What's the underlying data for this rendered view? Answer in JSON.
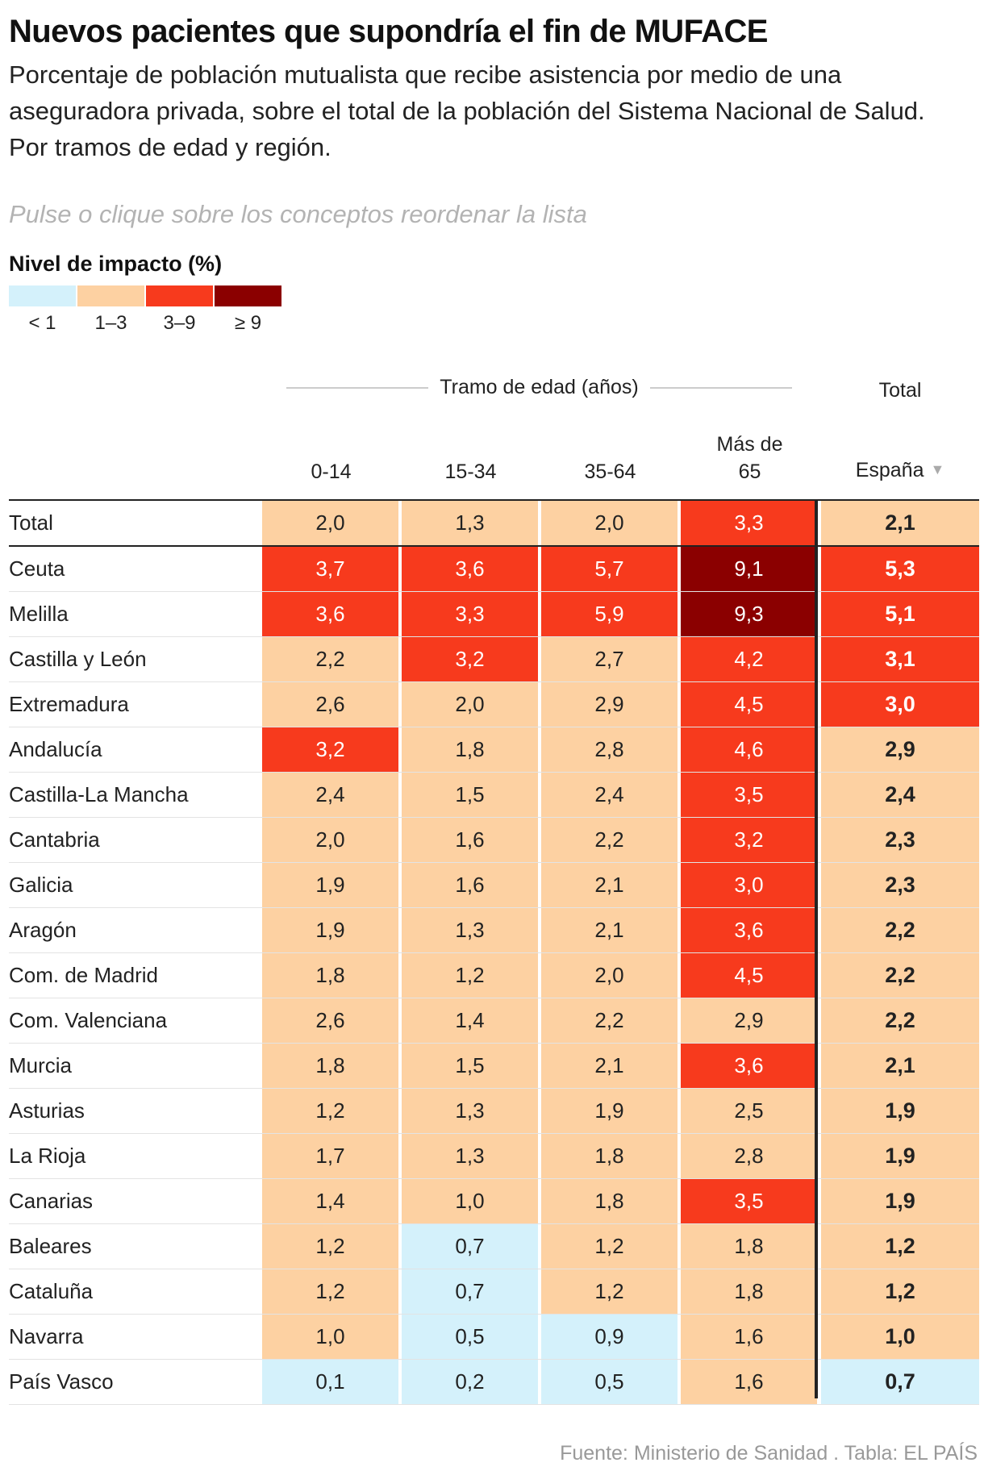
{
  "header": {
    "title": "Nuevos pacientes que supondría el fin de MUFACE",
    "subtitle": "Porcentaje de población mutualista que recibe asistencia por medio de una aseguradora privada, sobre el total de la población del Sistema Nacional de Salud. Por tramos de edad y región.",
    "hint": "Pulse o clique sobre los conceptos reordenar la lista"
  },
  "legend": {
    "title": "Nivel de impacto (%)",
    "items": [
      {
        "label": "< 1",
        "color": "#d4f1fb"
      },
      {
        "label": "1–3",
        "color": "#fdd1a2"
      },
      {
        "label": "3–9",
        "color": "#f73a1d"
      },
      {
        "label": "≥ 9",
        "color": "#8b0000"
      }
    ]
  },
  "table_header": {
    "group_label": "Tramo de edad (años)",
    "total_label": "Total",
    "columns": [
      "0-14",
      "15-34",
      "35-64",
      "Más de 65"
    ],
    "total_column": "España"
  },
  "chart_data": {
    "type": "table",
    "columns": [
      "0-14",
      "15-34",
      "35-64",
      "Más de 65",
      "España"
    ],
    "rows": [
      {
        "region": "Total",
        "values": [
          "2,0",
          "1,3",
          "2,0",
          "3,3"
        ],
        "total": "2,1"
      },
      {
        "region": "Ceuta",
        "values": [
          "3,7",
          "3,6",
          "5,7",
          "9,1"
        ],
        "total": "5,3"
      },
      {
        "region": "Melilla",
        "values": [
          "3,6",
          "3,3",
          "5,9",
          "9,3"
        ],
        "total": "5,1"
      },
      {
        "region": "Castilla y León",
        "values": [
          "2,2",
          "3,2",
          "2,7",
          "4,2"
        ],
        "total": "3,1"
      },
      {
        "region": "Extremadura",
        "values": [
          "2,6",
          "2,0",
          "2,9",
          "4,5"
        ],
        "total": "3,0"
      },
      {
        "region": "Andalucía",
        "values": [
          "3,2",
          "1,8",
          "2,8",
          "4,6"
        ],
        "total": "2,9"
      },
      {
        "region": "Castilla-La Mancha",
        "values": [
          "2,4",
          "1,5",
          "2,4",
          "3,5"
        ],
        "total": "2,4"
      },
      {
        "region": "Cantabria",
        "values": [
          "2,0",
          "1,6",
          "2,2",
          "3,2"
        ],
        "total": "2,3"
      },
      {
        "region": "Galicia",
        "values": [
          "1,9",
          "1,6",
          "2,1",
          "3,0"
        ],
        "total": "2,3"
      },
      {
        "region": "Aragón",
        "values": [
          "1,9",
          "1,3",
          "2,1",
          "3,6"
        ],
        "total": "2,2"
      },
      {
        "region": "Com. de Madrid",
        "values": [
          "1,8",
          "1,2",
          "2,0",
          "4,5"
        ],
        "total": "2,2"
      },
      {
        "region": "Com. Valenciana",
        "values": [
          "2,6",
          "1,4",
          "2,2",
          "2,9"
        ],
        "total": "2,2"
      },
      {
        "region": "Murcia",
        "values": [
          "1,8",
          "1,5",
          "2,1",
          "3,6"
        ],
        "total": "2,1"
      },
      {
        "region": "Asturias",
        "values": [
          "1,2",
          "1,3",
          "1,9",
          "2,5"
        ],
        "total": "1,9"
      },
      {
        "region": "La Rioja",
        "values": [
          "1,7",
          "1,3",
          "1,8",
          "2,8"
        ],
        "total": "1,9"
      },
      {
        "region": "Canarias",
        "values": [
          "1,4",
          "1,0",
          "1,8",
          "3,5"
        ],
        "total": "1,9"
      },
      {
        "region": "Baleares",
        "values": [
          "1,2",
          "0,7",
          "1,2",
          "1,8"
        ],
        "total": "1,2"
      },
      {
        "region": "Cataluña",
        "values": [
          "1,2",
          "0,7",
          "1,2",
          "1,8"
        ],
        "total": "1,2"
      },
      {
        "region": "Navarra",
        "values": [
          "1,0",
          "0,5",
          "0,9",
          "1,6"
        ],
        "total": "1,0"
      },
      {
        "region": "País Vasco",
        "values": [
          "0,1",
          "0,2",
          "0,5",
          "1,6"
        ],
        "total": "0,7"
      }
    ]
  },
  "footer": {
    "source": "Fuente: Ministerio de Sanidad . Tabla: EL PAÍS"
  }
}
